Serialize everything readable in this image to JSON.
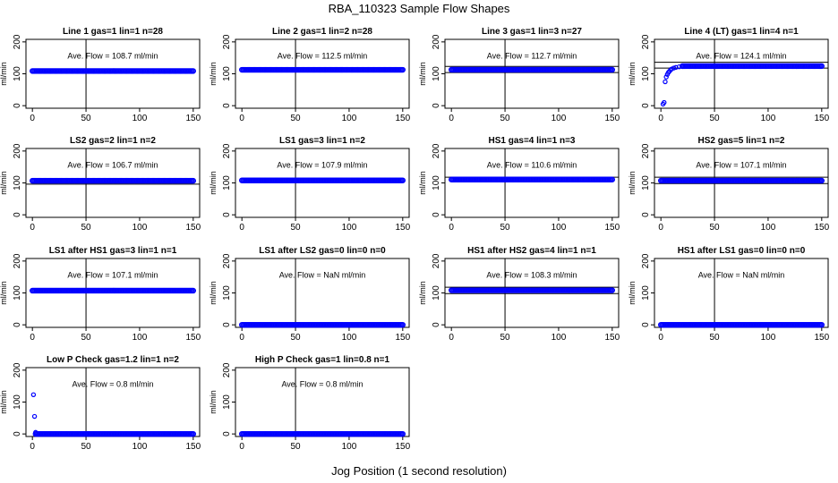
{
  "figure": {
    "title": "RBA_110323  Sample Flow Shapes",
    "xlabel": "Jog Position (1 second resolution)"
  },
  "chart_data": [
    {
      "type": "scatter",
      "title": "Line 1 gas=1 lin=1 n=28",
      "ylabel": "ml/min",
      "annotation": "Ave. Flow =  108.7  ml/min",
      "xlim": [
        0,
        150
      ],
      "ylim": [
        0,
        200
      ],
      "xticks": [
        0,
        50,
        100,
        150
      ],
      "yticks": [
        0,
        100,
        200
      ],
      "reference_lines": {
        "v": [
          50
        ],
        "h": []
      },
      "series": [
        {
          "shape": "flat",
          "level": 108.7,
          "x_range": [
            0,
            150
          ]
        }
      ]
    },
    {
      "type": "scatter",
      "title": "Line 2 gas=1 lin=2 n=28",
      "ylabel": "ml/min",
      "annotation": "Ave. Flow =  112.5  ml/min",
      "xlim": [
        0,
        150
      ],
      "ylim": [
        0,
        200
      ],
      "xticks": [
        0,
        50,
        100,
        150
      ],
      "yticks": [
        0,
        100,
        200
      ],
      "reference_lines": {
        "v": [
          50
        ],
        "h": []
      },
      "series": [
        {
          "shape": "flat",
          "level": 112.5,
          "x_range": [
            0,
            150
          ]
        }
      ]
    },
    {
      "type": "scatter",
      "title": "Line 3 gas=1 lin=3 n=27",
      "ylabel": "ml/min",
      "annotation": "Ave. Flow =  112.7  ml/min",
      "xlim": [
        0,
        150
      ],
      "ylim": [
        0,
        200
      ],
      "xticks": [
        0,
        50,
        100,
        150
      ],
      "yticks": [
        0,
        100,
        200
      ],
      "reference_lines": {
        "v": [
          50
        ],
        "h": [
          123,
          104
        ]
      },
      "series": [
        {
          "shape": "flat",
          "level": 112.7,
          "x_range": [
            0,
            150
          ]
        }
      ]
    },
    {
      "type": "scatter",
      "title": "Line 4 (LT) gas=1 lin=4 n=1",
      "ylabel": "ml/min",
      "annotation": "Ave. Flow =  124.1  ml/min",
      "xlim": [
        0,
        150
      ],
      "ylim": [
        0,
        200
      ],
      "xticks": [
        0,
        50,
        100,
        150
      ],
      "yticks": [
        0,
        100,
        200
      ],
      "reference_lines": {
        "v": [
          50
        ],
        "h": [
          136,
          118
        ]
      },
      "series": [
        {
          "shape": "rise",
          "points": [
            [
              2,
              5
            ],
            [
              3,
              10
            ],
            [
              4,
              75
            ],
            [
              5,
              90
            ],
            [
              6,
              98
            ],
            [
              7,
              104
            ],
            [
              8,
              108
            ],
            [
              9,
              112
            ],
            [
              10,
              115
            ],
            [
              12,
              118
            ],
            [
              14,
              120
            ],
            [
              17,
              122
            ],
            [
              20,
              123
            ]
          ],
          "level": 124.1,
          "x_range": [
            20,
            150
          ]
        }
      ]
    },
    {
      "type": "scatter",
      "title": "LS2 gas=2 lin=1 n=2",
      "ylabel": "ml/min",
      "annotation": "Ave. Flow =  106.7  ml/min",
      "xlim": [
        0,
        150
      ],
      "ylim": [
        0,
        200
      ],
      "xticks": [
        0,
        50,
        100,
        150
      ],
      "yticks": [
        0,
        100,
        200
      ],
      "reference_lines": {
        "v": [
          50
        ],
        "h": [
          96
        ]
      },
      "series": [
        {
          "shape": "flat",
          "level": 106.7,
          "x_range": [
            0,
            150
          ]
        }
      ]
    },
    {
      "type": "scatter",
      "title": "LS1 gas=3 lin=1 n=2",
      "ylabel": "ml/min",
      "annotation": "Ave. Flow =  107.9  ml/min",
      "xlim": [
        0,
        150
      ],
      "ylim": [
        0,
        200
      ],
      "xticks": [
        0,
        50,
        100,
        150
      ],
      "yticks": [
        0,
        100,
        200
      ],
      "reference_lines": {
        "v": [
          50
        ],
        "h": []
      },
      "series": [
        {
          "shape": "flat",
          "level": 107.9,
          "x_range": [
            0,
            150
          ]
        }
      ]
    },
    {
      "type": "scatter",
      "title": "HS1 gas=4 lin=1 n=3",
      "ylabel": "ml/min",
      "annotation": "Ave. Flow =  110.6  ml/min",
      "xlim": [
        0,
        150
      ],
      "ylim": [
        0,
        200
      ],
      "xticks": [
        0,
        50,
        100,
        150
      ],
      "yticks": [
        0,
        100,
        200
      ],
      "reference_lines": {
        "v": [
          50
        ],
        "h": [
          118
        ]
      },
      "series": [
        {
          "shape": "flat",
          "level": 110.6,
          "x_range": [
            0,
            150
          ]
        }
      ]
    },
    {
      "type": "scatter",
      "title": "HS2 gas=5 lin=1 n=2",
      "ylabel": "ml/min",
      "annotation": "Ave. Flow =  107.1  ml/min",
      "xlim": [
        0,
        150
      ],
      "ylim": [
        0,
        200
      ],
      "xticks": [
        0,
        50,
        100,
        150
      ],
      "yticks": [
        0,
        100,
        200
      ],
      "reference_lines": {
        "v": [
          50
        ],
        "h": [
          118,
          98
        ]
      },
      "series": [
        {
          "shape": "flat",
          "level": 107.1,
          "x_range": [
            0,
            150
          ]
        }
      ]
    },
    {
      "type": "scatter",
      "title": "LS1 after HS1 gas=3 lin=1 n=1",
      "ylabel": "ml/min",
      "annotation": "Ave. Flow =  107.1  ml/min",
      "xlim": [
        0,
        150
      ],
      "ylim": [
        0,
        200
      ],
      "xticks": [
        0,
        50,
        100,
        150
      ],
      "yticks": [
        0,
        100,
        200
      ],
      "reference_lines": {
        "v": [
          50
        ],
        "h": []
      },
      "series": [
        {
          "shape": "flat",
          "level": 107.1,
          "x_range": [
            0,
            150
          ]
        }
      ]
    },
    {
      "type": "scatter",
      "title": "LS1 after LS2 gas=0 lin=0 n=0",
      "ylabel": "ml/min",
      "annotation": "Ave. Flow =  NaN  ml/min",
      "xlim": [
        0,
        150
      ],
      "ylim": [
        0,
        200
      ],
      "xticks": [
        0,
        50,
        100,
        150
      ],
      "yticks": [
        0,
        100,
        200
      ],
      "reference_lines": {
        "v": [
          50
        ],
        "h": []
      },
      "series": [
        {
          "shape": "flat",
          "level": 0,
          "x_range": [
            0,
            150
          ]
        }
      ]
    },
    {
      "type": "scatter",
      "title": "HS1 after HS2 gas=4 lin=1 n=1",
      "ylabel": "ml/min",
      "annotation": "Ave. Flow =  108.3  ml/min",
      "xlim": [
        0,
        150
      ],
      "ylim": [
        0,
        200
      ],
      "xticks": [
        0,
        50,
        100,
        150
      ],
      "yticks": [
        0,
        100,
        200
      ],
      "reference_lines": {
        "v": [
          50
        ],
        "h": [
          118,
          98
        ]
      },
      "series": [
        {
          "shape": "flat",
          "level": 108.3,
          "x_range": [
            0,
            150
          ]
        }
      ]
    },
    {
      "type": "scatter",
      "title": "HS1 after LS1 gas=0 lin=0 n=0",
      "ylabel": "ml/min",
      "annotation": "Ave. Flow =  NaN  ml/min",
      "xlim": [
        0,
        150
      ],
      "ylim": [
        0,
        200
      ],
      "xticks": [
        0,
        50,
        100,
        150
      ],
      "yticks": [
        0,
        100,
        200
      ],
      "reference_lines": {
        "v": [
          50
        ],
        "h": []
      },
      "series": [
        {
          "shape": "flat",
          "level": 0,
          "x_range": [
            0,
            150
          ]
        }
      ]
    },
    {
      "type": "scatter",
      "title": "Low P Check gas=1.2 lin=1 n=2",
      "ylabel": "ml/min",
      "annotation": "Ave. Flow =  0.8  ml/min",
      "xlim": [
        0,
        150
      ],
      "ylim": [
        0,
        200
      ],
      "xticks": [
        0,
        50,
        100,
        150
      ],
      "yticks": [
        0,
        100,
        200
      ],
      "reference_lines": {
        "v": [
          50
        ],
        "h": []
      },
      "series": [
        {
          "shape": "drop",
          "points": [
            [
              1,
              123
            ],
            [
              2,
              55
            ],
            [
              3,
              5
            ]
          ],
          "level": 0,
          "x_range": [
            3,
            150
          ]
        }
      ]
    },
    {
      "type": "scatter",
      "title": "High P Check gas=1 lin=0.8 n=1",
      "ylabel": "ml/min",
      "annotation": "Ave. Flow =  0.8  ml/min",
      "xlim": [
        0,
        150
      ],
      "ylim": [
        0,
        200
      ],
      "xticks": [
        0,
        50,
        100,
        150
      ],
      "yticks": [
        0,
        100,
        200
      ],
      "reference_lines": {
        "v": [
          50
        ],
        "h": []
      },
      "series": [
        {
          "shape": "flat",
          "level": 0,
          "x_range": [
            0,
            150
          ]
        }
      ]
    }
  ],
  "colors": {
    "points": "#0000ff",
    "axes": "#000000",
    "background": "#ffffff"
  }
}
